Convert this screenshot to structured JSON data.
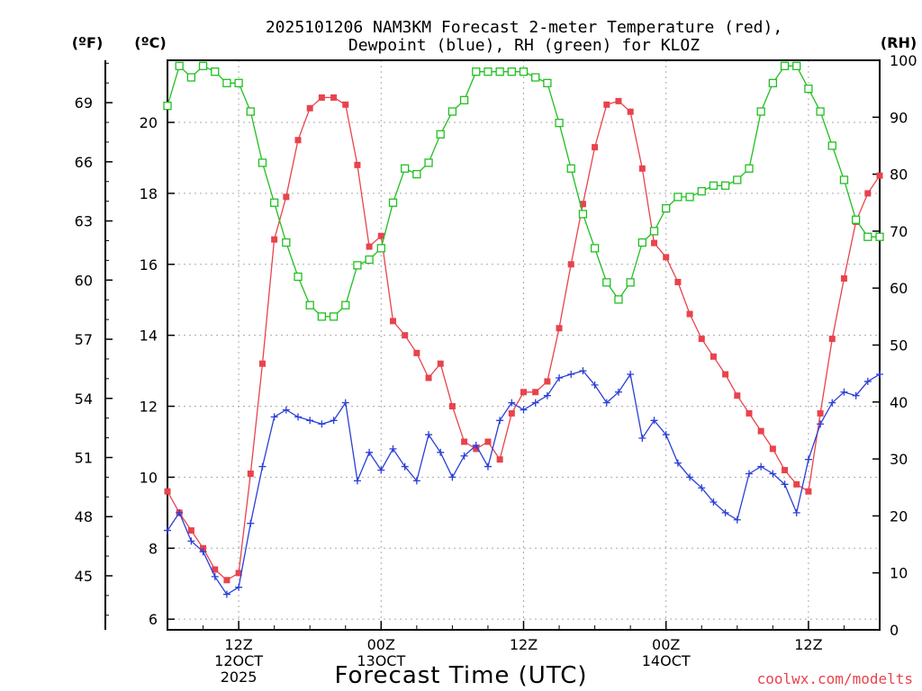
{
  "chart_data": {
    "type": "line",
    "title_lines": [
      "2025101206 NAM3KM Forecast 2-meter Temperature (red),",
      "Dewpoint (blue), RH (green) for KLOZ"
    ],
    "xlabel": "Forecast Time (UTC)",
    "credit": "coolwx.com/modelts",
    "axes": {
      "fahrenheit": {
        "label": "(ºF)",
        "ticks": [
          45,
          48,
          51,
          54,
          57,
          60,
          63,
          66,
          69
        ]
      },
      "celsius": {
        "label": "(ºC)",
        "ticks": [
          6,
          8,
          10,
          12,
          14,
          16,
          18,
          20
        ],
        "ylim": [
          5.7,
          21.75
        ]
      },
      "rh": {
        "label": "(RH)",
        "ticks": [
          0,
          10,
          20,
          30,
          40,
          50,
          60,
          70,
          80,
          90,
          100
        ],
        "ylim": [
          0,
          100
        ]
      }
    },
    "x_hours_range": [
      0,
      60
    ],
    "x_ticks": [
      {
        "hour": 6,
        "lines": [
          "12Z",
          "12OCT",
          "2025"
        ]
      },
      {
        "hour": 18,
        "lines": [
          "00Z",
          "13OCT"
        ]
      },
      {
        "hour": 30,
        "lines": [
          "12Z"
        ]
      },
      {
        "hour": 42,
        "lines": [
          "00Z",
          "14OCT"
        ]
      },
      {
        "hour": 54,
        "lines": [
          "12Z"
        ]
      }
    ],
    "colors": {
      "temperature": "#e8434d",
      "dewpoint": "#2b3fd6",
      "rh": "#20c020"
    },
    "series": [
      {
        "name": "Temperature (°C)",
        "axis": "celsius",
        "marker": "filled-square",
        "values": [
          9.6,
          9.0,
          8.5,
          8.0,
          7.4,
          7.1,
          7.3,
          10.1,
          13.2,
          16.7,
          17.9,
          19.5,
          20.4,
          20.7,
          20.7,
          20.5,
          18.8,
          16.5,
          16.8,
          14.4,
          14.0,
          13.5,
          12.8,
          13.2,
          12.0,
          11.0,
          10.8,
          11.0,
          10.5,
          11.8,
          12.4,
          12.4,
          12.7,
          14.2,
          16.0,
          17.7,
          19.3,
          20.5,
          20.6,
          20.3,
          18.7,
          16.6,
          16.2,
          15.5,
          14.6,
          13.9,
          13.4,
          12.9,
          12.3,
          11.8,
          11.3,
          10.8,
          10.2,
          9.8,
          9.6,
          11.8,
          13.9,
          15.6,
          17.2,
          18.0,
          18.5
        ]
      },
      {
        "name": "Dewpoint (°C)",
        "axis": "celsius",
        "marker": "plus",
        "values": [
          8.5,
          9.0,
          8.2,
          7.9,
          7.2,
          6.7,
          6.9,
          8.7,
          10.3,
          11.7,
          11.9,
          11.7,
          11.6,
          11.5,
          11.6,
          12.1,
          9.9,
          10.7,
          10.2,
          10.8,
          10.3,
          9.9,
          11.2,
          10.7,
          10.0,
          10.6,
          10.9,
          10.3,
          11.6,
          12.1,
          11.9,
          12.1,
          12.3,
          12.8,
          12.9,
          13.0,
          12.6,
          12.1,
          12.4,
          12.9,
          11.1,
          11.6,
          11.2,
          10.4,
          10.0,
          9.7,
          9.3,
          9.0,
          8.8,
          10.1,
          10.3,
          10.1,
          9.8,
          9.0,
          10.5,
          11.5,
          12.1,
          12.4,
          12.3,
          12.7,
          12.9
        ]
      },
      {
        "name": "RH (%)",
        "axis": "rh",
        "marker": "open-square",
        "values": [
          92,
          99,
          97,
          99,
          98,
          96,
          96,
          91,
          82,
          75,
          68,
          62,
          57,
          55,
          55,
          57,
          64,
          65,
          67,
          75,
          81,
          80,
          82,
          87,
          91,
          93,
          98,
          98,
          98,
          98,
          98,
          97,
          96,
          89,
          81,
          73,
          67,
          61,
          58,
          61,
          68,
          70,
          74,
          76,
          76,
          77,
          78,
          78,
          79,
          81,
          91,
          96,
          99,
          99,
          95,
          91,
          85,
          79,
          72,
          69,
          69
        ]
      }
    ]
  }
}
